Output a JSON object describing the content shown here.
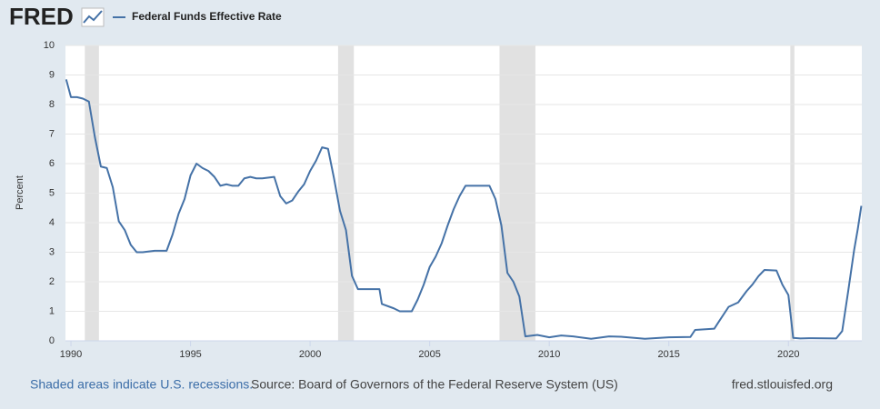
{
  "logo": "FRED",
  "footer": {
    "recession_note": "Shaded areas indicate U.S. recessions.",
    "source": "Source: Board of Governors of the Federal Reserve System (US)",
    "site": "fred.stlouisfed.org"
  },
  "chart_data": {
    "type": "line",
    "ylabel": "Percent",
    "xlim": [
      1989.77,
      2023.07
    ],
    "ylim": [
      0,
      10
    ],
    "xticks": [
      1990,
      1995,
      2000,
      2005,
      2010,
      2015,
      2020
    ],
    "yticks": [
      0,
      1,
      2,
      3,
      4,
      5,
      6,
      7,
      8,
      9,
      10
    ],
    "grid": true,
    "recessions": [
      [
        1990.58,
        1991.17
      ],
      [
        2001.17,
        2001.83
      ],
      [
        2007.92,
        2009.42
      ],
      [
        2020.08,
        2020.25
      ]
    ],
    "x": [
      1989.8,
      1990.0,
      1990.25,
      1990.5,
      1990.75,
      1991.0,
      1991.25,
      1991.5,
      1991.75,
      1992.0,
      1992.25,
      1992.5,
      1992.75,
      1993.0,
      1993.5,
      1994.0,
      1994.25,
      1994.5,
      1994.75,
      1995.0,
      1995.25,
      1995.5,
      1995.75,
      1996.0,
      1996.25,
      1996.5,
      1996.75,
      1997.0,
      1997.25,
      1997.5,
      1997.75,
      1998.0,
      1998.5,
      1998.75,
      1999.0,
      1999.25,
      1999.5,
      1999.75,
      2000.0,
      2000.25,
      2000.5,
      2000.75,
      2001.0,
      2001.25,
      2001.5,
      2001.75,
      2002.0,
      2002.5,
      2002.9,
      2003.0,
      2003.5,
      2003.75,
      2004.25,
      2004.5,
      2004.75,
      2005.0,
      2005.25,
      2005.5,
      2005.75,
      2006.0,
      2006.25,
      2006.5,
      2007.0,
      2007.5,
      2007.75,
      2008.0,
      2008.25,
      2008.5,
      2008.75,
      2009.0,
      2009.5,
      2010.0,
      2010.5,
      2011.0,
      2011.75,
      2012.5,
      2013.0,
      2014.0,
      2015.0,
      2015.9,
      2016.1,
      2016.9,
      2017.1,
      2017.5,
      2017.9,
      2018.25,
      2018.5,
      2018.75,
      2019.0,
      2019.5,
      2019.75,
      2020.0,
      2020.2,
      2020.5,
      2021.0,
      2022.0,
      2022.25,
      2022.5,
      2022.75,
      2022.9,
      2023.05
    ],
    "series": [
      {
        "name": "Federal Funds Effective Rate",
        "color": "#4572a7",
        "values": [
          8.85,
          8.25,
          8.25,
          8.2,
          8.1,
          6.9,
          5.9,
          5.85,
          5.2,
          4.05,
          3.75,
          3.25,
          3.0,
          3.0,
          3.05,
          3.05,
          3.6,
          4.3,
          4.8,
          5.6,
          6.0,
          5.85,
          5.75,
          5.55,
          5.25,
          5.3,
          5.25,
          5.25,
          5.5,
          5.55,
          5.5,
          5.5,
          5.55,
          4.9,
          4.65,
          4.75,
          5.05,
          5.3,
          5.75,
          6.1,
          6.55,
          6.5,
          5.5,
          4.4,
          3.75,
          2.2,
          1.75,
          1.75,
          1.75,
          1.25,
          1.1,
          1.0,
          1.0,
          1.4,
          1.9,
          2.5,
          2.85,
          3.3,
          3.9,
          4.45,
          4.9,
          5.25,
          5.25,
          5.25,
          4.8,
          3.9,
          2.3,
          2.0,
          1.5,
          0.15,
          0.2,
          0.12,
          0.18,
          0.15,
          0.07,
          0.15,
          0.14,
          0.07,
          0.12,
          0.13,
          0.37,
          0.41,
          0.66,
          1.15,
          1.3,
          1.68,
          1.91,
          2.19,
          2.4,
          2.38,
          1.9,
          1.55,
          0.1,
          0.08,
          0.09,
          0.08,
          0.33,
          1.68,
          3.08,
          3.78,
          4.57
        ]
      }
    ]
  }
}
